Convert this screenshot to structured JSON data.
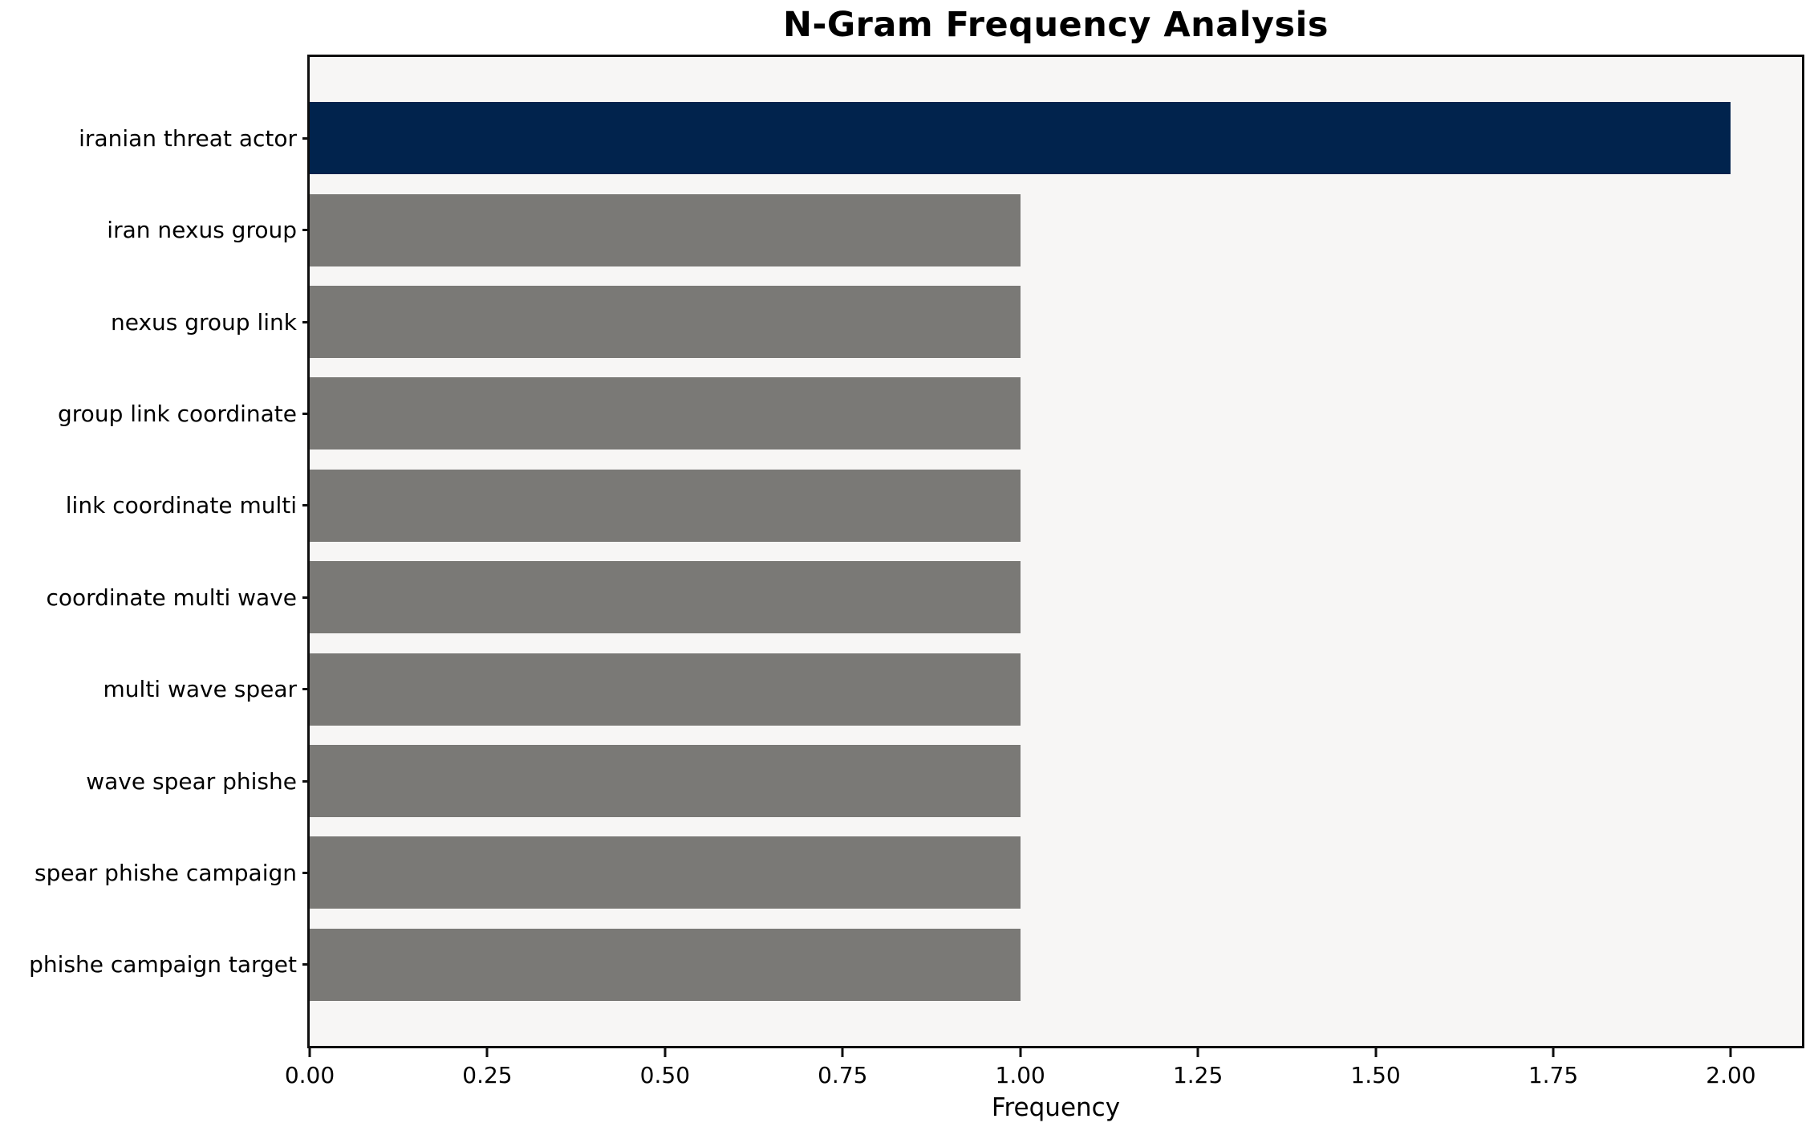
{
  "chart_data": {
    "type": "bar",
    "orientation": "horizontal",
    "title": "N-Gram Frequency Analysis",
    "xlabel": "Frequency",
    "ylabel": "",
    "categories": [
      "iranian threat actor",
      "iran nexus group",
      "nexus group link",
      "group link coordinate",
      "link coordinate multi",
      "coordinate multi wave",
      "multi wave spear",
      "wave spear phishe",
      "spear phishe campaign",
      "phishe campaign target"
    ],
    "values": [
      2,
      1,
      1,
      1,
      1,
      1,
      1,
      1,
      1,
      1
    ],
    "bar_colors": [
      "#01234d",
      "#7a7976",
      "#7a7976",
      "#7a7976",
      "#7a7976",
      "#7a7976",
      "#7a7976",
      "#7a7976",
      "#7a7976",
      "#7a7976"
    ],
    "xlim": [
      0,
      2.1
    ],
    "xticks": [
      0.0,
      0.25,
      0.5,
      0.75,
      1.0,
      1.25,
      1.5,
      1.75,
      2.0
    ],
    "xtick_labels": [
      "0.00",
      "0.25",
      "0.50",
      "0.75",
      "1.00",
      "1.25",
      "1.50",
      "1.75",
      "2.00"
    ],
    "grid": false,
    "legend": null,
    "highlight_color": "#01234d",
    "default_color": "#7a7976",
    "plot_background": "#f7f6f5",
    "spine_color": "#0e0e0e"
  }
}
